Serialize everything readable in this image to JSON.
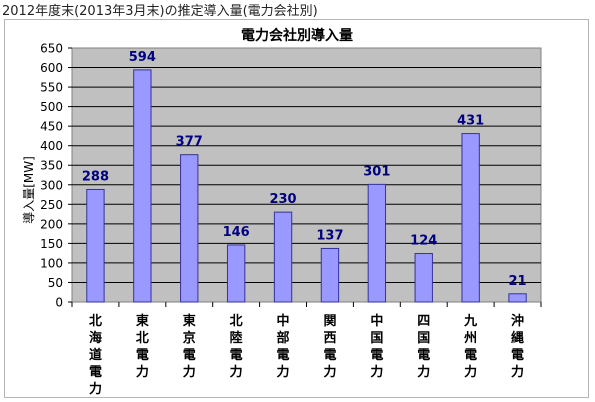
{
  "caption": "2012年度末(2013年3月末)の推定導入量(電力会社別)",
  "chart_data": {
    "type": "bar",
    "title": "電力会社別導入量",
    "ylabel": "導入量[MW]",
    "xlabel": "",
    "categories": [
      "北海道電力",
      "東北電力",
      "東京電力",
      "北陸電力",
      "中部電力",
      "関西電力",
      "中国電力",
      "四国電力",
      "九州電力",
      "沖縄電力"
    ],
    "values": [
      288,
      594,
      377,
      146,
      230,
      137,
      301,
      124,
      431,
      21
    ],
    "data_labels": [
      "288",
      "594",
      "377",
      "146",
      "230",
      "137",
      "301",
      "124",
      "431",
      "21"
    ],
    "ylim": [
      0,
      650
    ],
    "yticks": [
      0,
      50,
      100,
      150,
      200,
      250,
      300,
      350,
      400,
      450,
      500,
      550,
      600,
      650
    ],
    "ytick_labels": [
      "0",
      "50",
      "100",
      "150",
      "200",
      "250",
      "300",
      "350",
      "400",
      "450",
      "500",
      "550",
      "600",
      "650"
    ],
    "grid": true,
    "colors": {
      "plot_background": "#c0c0c0",
      "bar_fill": "#9999ff",
      "bar_stroke": "#333399",
      "gridline": "#000000",
      "data_label": "#000080"
    }
  }
}
